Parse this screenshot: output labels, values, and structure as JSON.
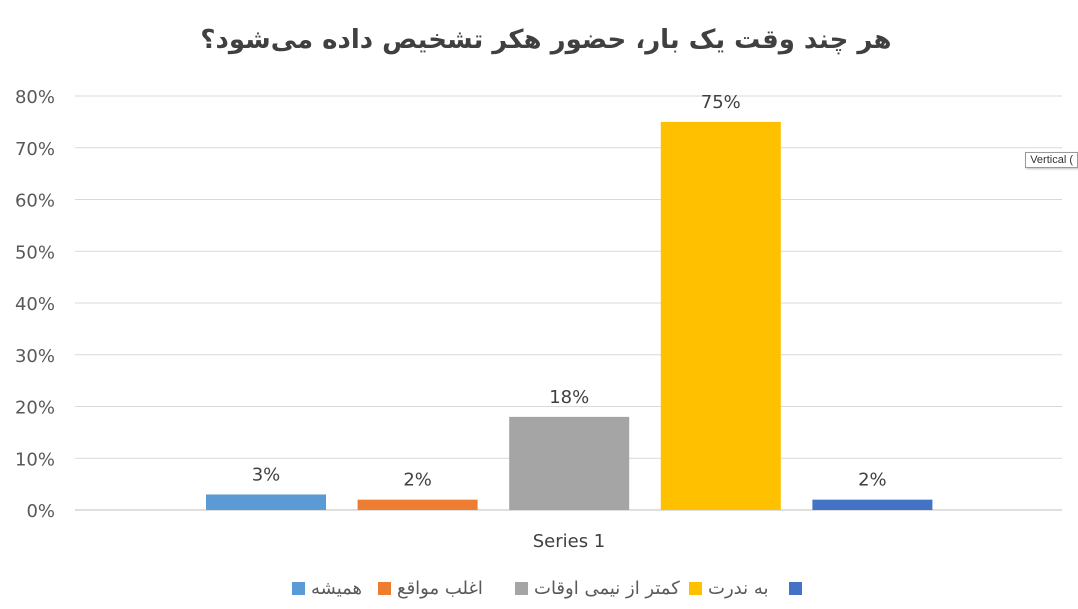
{
  "chart_data": {
    "type": "bar",
    "title": "هر چند وقت یک بار، حضور هکر تشخیص داده می‌شود؟",
    "category_label": "Series 1",
    "ylim": [
      0,
      80
    ],
    "y_ticks": [
      "0%",
      "10%",
      "20%",
      "30%",
      "40%",
      "50%",
      "60%",
      "70%",
      "80%"
    ],
    "grid": true,
    "legend_position": "bottom",
    "series": [
      {
        "name": "همیشه",
        "value": 3,
        "label": "3%",
        "color": "#5b9bd5"
      },
      {
        "name": "اغلب مواقع",
        "value": 2,
        "label": "2%",
        "color": "#ed7d31"
      },
      {
        "name": "کمتر از نیمی اوقات",
        "value": 18,
        "label": "18%",
        "color": "#a5a5a5"
      },
      {
        "name": "به ندرت",
        "value": 75,
        "label": "75%",
        "color": "#ffc000"
      },
      {
        "name": "",
        "value": 2,
        "label": "2%",
        "color": "#4472c4"
      }
    ]
  },
  "tooltip": {
    "text": "Vertical ("
  }
}
